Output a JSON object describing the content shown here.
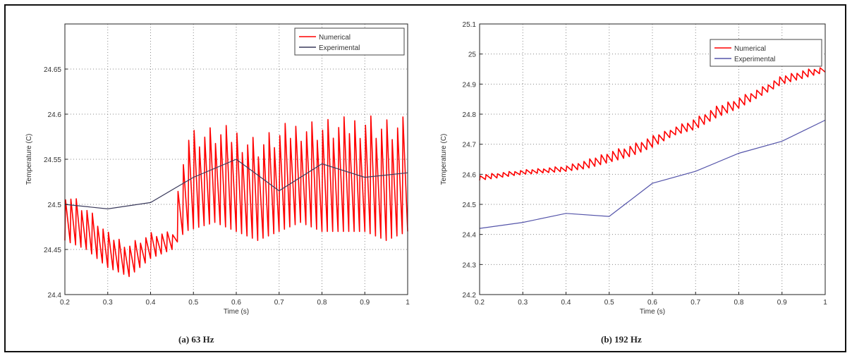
{
  "chart_data": [
    {
      "type": "line",
      "caption": "(a)  63 Hz",
      "xlabel": "Time (s)",
      "ylabel": "Temperature (C)",
      "xlim": [
        0.2,
        1.0
      ],
      "ylim": [
        24.4,
        24.7
      ],
      "x_ticks": [
        0.2,
        0.3,
        0.4,
        0.5,
        0.6,
        0.7,
        0.8,
        0.9,
        1.0
      ],
      "x_tick_labels": [
        "0.2",
        "0.3",
        "0.4",
        "0.5",
        "0.6",
        "0.7",
        "0.8",
        "0.9",
        "1"
      ],
      "y_ticks": [
        24.4,
        24.45,
        24.5,
        24.55,
        24.6,
        24.65
      ],
      "y_tick_labels": [
        "24.4",
        "24.45",
        "24.5",
        "24.55",
        "24.6",
        "24.65"
      ],
      "grid": true,
      "legend_position": "top-right",
      "series": [
        {
          "name": "Numerical",
          "color": "#ff0000",
          "style": "oscillating",
          "x": [
            0.2,
            0.25,
            0.3,
            0.35,
            0.4,
            0.45,
            0.48,
            0.55,
            0.6,
            0.65,
            0.7,
            0.75,
            0.8,
            0.85,
            0.9,
            0.95,
            1.0
          ],
          "low": [
            24.46,
            24.45,
            24.43,
            24.42,
            24.44,
            24.45,
            24.47,
            24.48,
            24.47,
            24.46,
            24.47,
            24.48,
            24.47,
            24.47,
            24.47,
            24.46,
            24.47
          ],
          "high": [
            24.52,
            24.5,
            24.47,
            24.46,
            24.47,
            24.47,
            24.59,
            24.59,
            24.59,
            24.58,
            24.59,
            24.6,
            24.6,
            24.6,
            24.61,
            24.6,
            24.6
          ]
        },
        {
          "name": "Experimental",
          "color": "#3a3a5c",
          "x": [
            0.2,
            0.3,
            0.4,
            0.5,
            0.6,
            0.7,
            0.8,
            0.9,
            1.0
          ],
          "y": [
            24.5,
            24.495,
            24.502,
            24.53,
            24.55,
            24.515,
            24.545,
            24.53,
            24.535
          ]
        }
      ]
    },
    {
      "type": "line",
      "caption": "(b)  192 Hz",
      "xlabel": "Time (s)",
      "ylabel": "Temperature (C)",
      "xlim": [
        0.2,
        1.0
      ],
      "ylim": [
        24.2,
        25.1
      ],
      "x_ticks": [
        0.2,
        0.3,
        0.4,
        0.5,
        0.6,
        0.7,
        0.8,
        0.9,
        1.0
      ],
      "x_tick_labels": [
        "0.2",
        "0.3",
        "0.4",
        "0.5",
        "0.6",
        "0.7",
        "0.8",
        "0.9",
        "1"
      ],
      "y_ticks": [
        24.2,
        24.3,
        24.4,
        24.5,
        24.6,
        24.7,
        24.8,
        24.9,
        25.0,
        25.1
      ],
      "y_tick_labels": [
        "24.2",
        "24.3",
        "24.4",
        "24.5",
        "24.6",
        "24.7",
        "24.8",
        "24.9",
        "25",
        "25.1"
      ],
      "grid": true,
      "legend_position": "top-right",
      "series": [
        {
          "name": "Numerical",
          "color": "#ff0000",
          "style": "oscillating",
          "x": [
            0.2,
            0.3,
            0.4,
            0.45,
            0.5,
            0.55,
            0.6,
            0.65,
            0.7,
            0.75,
            0.8,
            0.85,
            0.9,
            0.95,
            1.0
          ],
          "low": [
            24.58,
            24.6,
            24.61,
            24.62,
            24.64,
            24.66,
            24.69,
            24.73,
            24.75,
            24.79,
            24.82,
            24.86,
            24.9,
            24.92,
            24.94
          ],
          "high": [
            24.6,
            24.615,
            24.63,
            24.65,
            24.68,
            24.7,
            24.73,
            24.76,
            24.79,
            24.83,
            24.86,
            24.89,
            24.93,
            24.95,
            24.96
          ]
        },
        {
          "name": "Experimental",
          "color": "#5555aa",
          "x": [
            0.2,
            0.3,
            0.4,
            0.5,
            0.6,
            0.7,
            0.8,
            0.9,
            1.0
          ],
          "y": [
            24.42,
            24.44,
            24.47,
            24.46,
            24.57,
            24.61,
            24.67,
            24.71,
            24.78
          ]
        }
      ]
    }
  ]
}
